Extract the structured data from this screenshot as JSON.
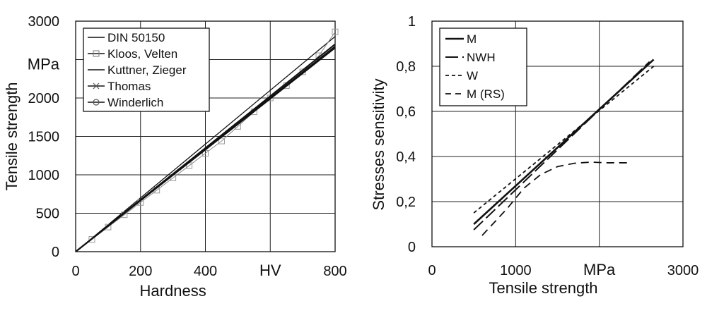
{
  "chart_data": [
    {
      "type": "line",
      "xlabel": "Hardness",
      "x_unit": "HV",
      "ylabel": "Tensile strength",
      "y_unit": "MPa",
      "xlim": [
        0,
        800
      ],
      "ylim": [
        0,
        3000
      ],
      "xticks": [
        0,
        200,
        400,
        800
      ],
      "yticks": [
        0,
        500,
        1000,
        1500,
        2000,
        2500,
        3000
      ],
      "grid": true,
      "legend_position": "top-left",
      "series": [
        {
          "name": "DIN 50150",
          "marker": "none",
          "x": [
            0,
            800
          ],
          "y": [
            0,
            2800
          ]
        },
        {
          "name": "Kloos, Velten",
          "marker": "square",
          "x": [
            50,
            100,
            150,
            200,
            250,
            300,
            350,
            400,
            450,
            500,
            550,
            600,
            650,
            700,
            750,
            800
          ],
          "y": [
            160,
            320,
            480,
            640,
            800,
            960,
            1120,
            1280,
            1440,
            1630,
            1820,
            2000,
            2160,
            2340,
            2550,
            2860
          ]
        },
        {
          "name": "Kuttner, Zieger",
          "marker": "none",
          "x": [
            0,
            800
          ],
          "y": [
            0,
            2670
          ]
        },
        {
          "name": "Thomas",
          "marker": "x",
          "x": [
            0,
            800
          ],
          "y": [
            0,
            2650
          ]
        },
        {
          "name": "Winderlich",
          "marker": "circle",
          "x": [
            0,
            800
          ],
          "y": [
            0,
            2700
          ]
        }
      ]
    },
    {
      "type": "line",
      "xlabel": "Tensile strength",
      "x_unit": "MPa",
      "ylabel": "Stresses sensitivity",
      "xlim": [
        0,
        3000
      ],
      "ylim": [
        0,
        1
      ],
      "xticks": [
        "0",
        "1000",
        "3000"
      ],
      "yticks": [
        "0",
        "0,2",
        "0,4",
        "0,6",
        "0,8",
        "1"
      ],
      "grid": true,
      "legend_position": "top-left",
      "series": [
        {
          "name": "M",
          "style": "solid",
          "x": [
            500,
            2650
          ],
          "y": [
            0.1,
            0.83
          ]
        },
        {
          "name": "NWH",
          "style": "long-dash",
          "x": [
            500,
            2600
          ],
          "y": [
            0.075,
            0.82
          ]
        },
        {
          "name": "W",
          "style": "short-dash",
          "x": [
            500,
            2650
          ],
          "y": [
            0.15,
            0.8
          ]
        },
        {
          "name": "M (RS)",
          "style": "dash",
          "x": [
            600,
            900,
            1100,
            1300,
            1500,
            1700,
            1900,
            2100,
            2350
          ],
          "y": [
            0.05,
            0.17,
            0.26,
            0.32,
            0.355,
            0.37,
            0.375,
            0.372,
            0.372
          ]
        }
      ]
    }
  ]
}
